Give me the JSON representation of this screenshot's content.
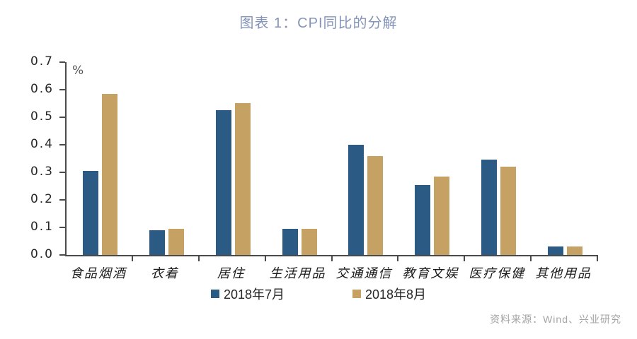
{
  "title": "图表 1：CPI同比的分解",
  "source": "资料来源：Wind、兴业研究",
  "colors": {
    "title": "#8493B8",
    "axis": "#4a4a4a",
    "series_july": "#2B5B84",
    "series_august": "#C6A164",
    "source_text": "#a3a3a3"
  },
  "chart_data": {
    "type": "bar",
    "title": "图表 1：CPI同比的分解",
    "unit_label": "%",
    "categories": [
      "食品烟酒",
      "衣着",
      "居住",
      "生活用品",
      "交通通信",
      "教育文娱",
      "医疗保健",
      "其他用品"
    ],
    "series": [
      {
        "name": "2018年7月",
        "color": "#2B5B84",
        "values": [
          0.305,
          0.09,
          0.525,
          0.095,
          0.4,
          0.255,
          0.345,
          0.03
        ]
      },
      {
        "name": "2018年8月",
        "color": "#C6A164",
        "values": [
          0.585,
          0.095,
          0.55,
          0.095,
          0.36,
          0.285,
          0.32,
          0.03
        ]
      }
    ],
    "ylim": [
      0.0,
      0.7
    ],
    "ytick_step": 0.1,
    "yticks": [
      "0.0",
      "0.1",
      "0.2",
      "0.3",
      "0.4",
      "0.5",
      "0.6",
      "0.7"
    ],
    "grid": false,
    "legend_position": "bottom"
  }
}
